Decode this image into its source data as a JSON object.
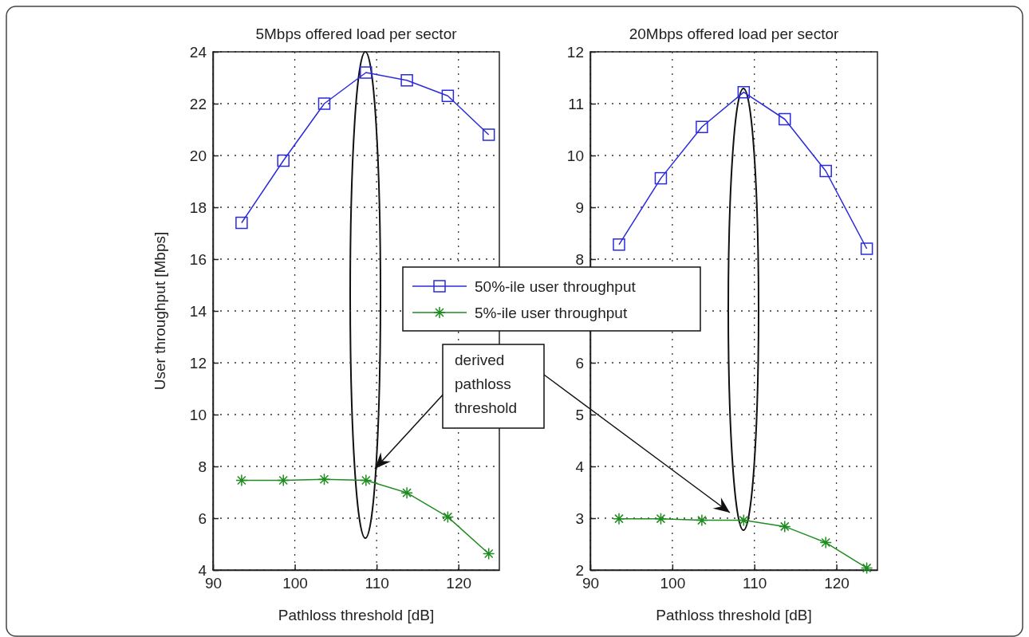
{
  "chart_data": [
    {
      "type": "line",
      "title": "5Mbps offered load per sector",
      "xlabel": "Pathloss threshold [dB]",
      "ylabel": "User throughput [Mbps]",
      "x": [
        93.5,
        98.6,
        103.6,
        108.7,
        113.7,
        118.7,
        123.7
      ],
      "series": [
        {
          "name": "50%-ile user throughput",
          "color": "#2b2bdc",
          "marker": "square",
          "values": [
            17.4,
            19.8,
            22.0,
            23.2,
            22.9,
            22.3,
            20.8
          ]
        },
        {
          "name": "5%-ile user throughput",
          "color": "#1e8c1e",
          "marker": "cross",
          "values": [
            7.46,
            7.46,
            7.5,
            7.46,
            6.98,
            6.05,
            4.63
          ]
        }
      ],
      "xlim": [
        90,
        125
      ],
      "xticks": [
        90,
        100,
        110,
        120
      ],
      "ylim": [
        4,
        24
      ],
      "yticks": [
        4,
        6,
        8,
        10,
        12,
        14,
        16,
        18,
        20,
        22,
        24
      ],
      "grid": true,
      "legend": "right",
      "annotations": [
        "derived pathloss threshold"
      ]
    },
    {
      "type": "line",
      "title": "20Mbps offered load per sector",
      "xlabel": "Pathloss threshold [dB]",
      "x": [
        93.5,
        98.6,
        103.6,
        108.7,
        113.7,
        118.7,
        123.7
      ],
      "series": [
        {
          "color": "#2b2bdc",
          "marker": "square",
          "values": [
            8.28,
            9.56,
            10.55,
            11.22,
            10.7,
            9.7,
            8.2
          ]
        },
        {
          "color": "#1e8c1e",
          "marker": "cross",
          "values": [
            2.99,
            2.99,
            2.96,
            2.96,
            2.84,
            2.53,
            2.04
          ]
        }
      ],
      "xlim": [
        90,
        125
      ],
      "xticks": [
        90,
        100,
        110,
        120
      ],
      "ylim": [
        2,
        12
      ],
      "yticks": [
        2,
        3,
        4,
        5,
        6,
        {
          "value": 7,
          "label": null
        },
        8,
        9,
        10,
        11,
        12
      ],
      "grid": true,
      "legend": false
    }
  ]
}
